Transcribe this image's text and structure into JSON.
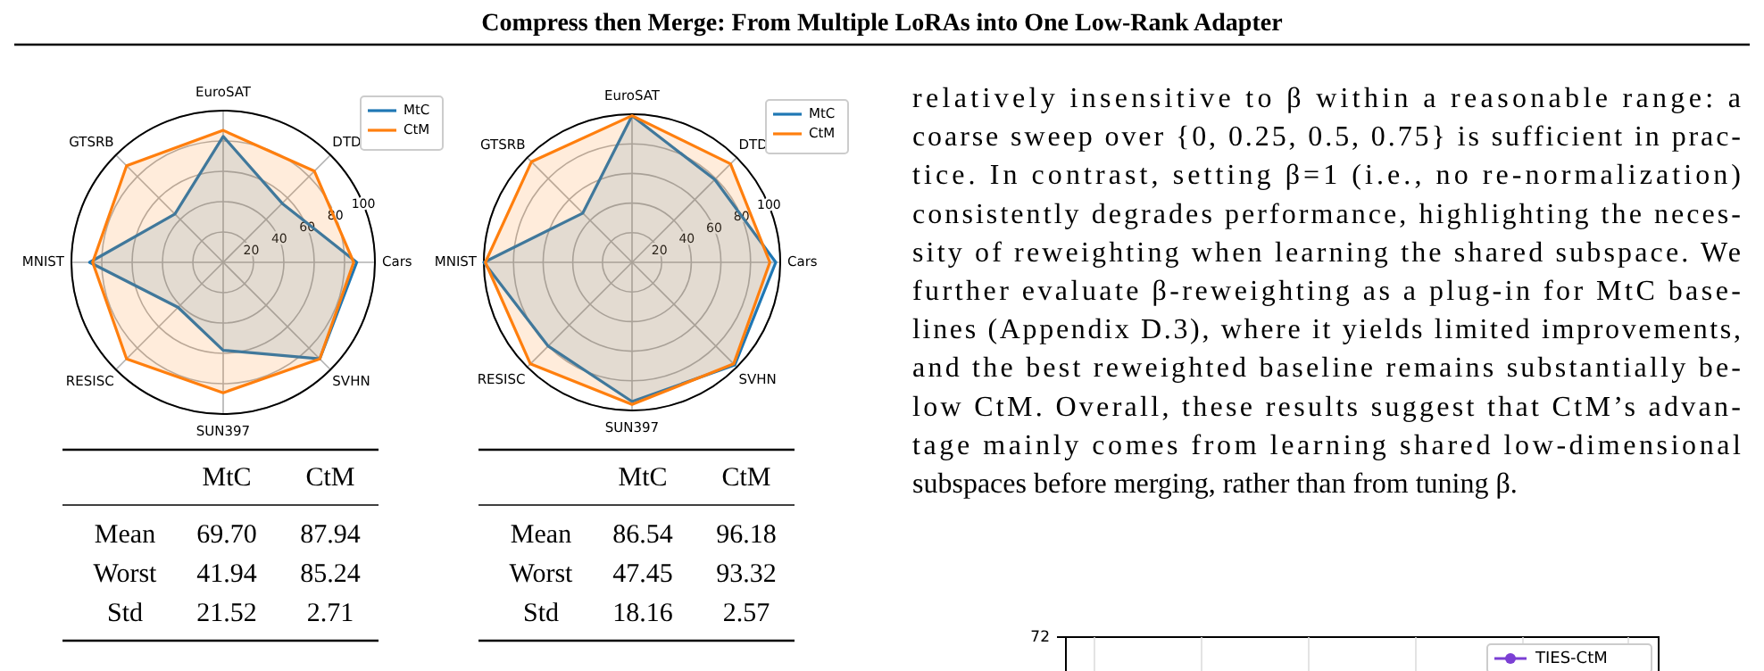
{
  "chart_data": [
    {
      "type": "radar",
      "categories": [
        "EuroSAT",
        "DTD",
        "Cars",
        "SVHN",
        "SUN397",
        "RESISC",
        "MNIST",
        "GTSRB"
      ],
      "ylim": [
        0,
        100
      ],
      "yticks": [
        20,
        40,
        60,
        80,
        100
      ],
      "grid": true,
      "legend": "top right",
      "series": [
        {
          "name": "MtC",
          "color": "#1f77b4",
          "values": [
            83,
            55,
            88,
            90,
            58,
            42,
            88,
            45
          ]
        },
        {
          "name": "CtM",
          "color": "#ff7f0e",
          "values": [
            87,
            85,
            86,
            90,
            86,
            90,
            86,
            90
          ]
        }
      ],
      "annotations": [
        "MtC",
        "CtM",
        "Mean",
        "69.70",
        "87.94",
        "Worst",
        "41.94",
        "85.24",
        "Std",
        "21.52",
        "2.71"
      ]
    },
    {
      "type": "radar",
      "categories": [
        "EuroSAT",
        "DTD",
        "Cars",
        "SVHN",
        "SUN397",
        "RESISC",
        "MNIST",
        "GTSRB"
      ],
      "ylim": [
        0,
        100
      ],
      "yticks": [
        20,
        40,
        60,
        80,
        100
      ],
      "grid": true,
      "legend": "top right",
      "series": [
        {
          "name": "MtC",
          "color": "#1f77b4",
          "values": [
            99,
            79,
            97,
            98,
            94,
            80,
            100,
            47
          ]
        },
        {
          "name": "CtM",
          "color": "#ff7f0e",
          "values": [
            99,
            94,
            93,
            97,
            96,
            97,
            99,
            96
          ]
        }
      ],
      "annotations": [
        "MtC",
        "CtM",
        "Mean",
        "86.54",
        "96.18",
        "Worst",
        "47.45",
        "93.32",
        "Std",
        "18.16",
        "2.57"
      ]
    },
    {
      "type": "other",
      "title": "Compress then Merge: From Multiple LoRAs into One Low-Rank Adapter",
      "annotations": [
        "relatively insensitive to β within a reasonable range: a",
        "coarse sweep over {0, 0.25, 0.5, 0.75} is sufficient in prac-",
        "tice. In contrast, setting β=1 (i.e., no re-normalization)",
        "consistently degrades performance, highlighting the neces-",
        "sity of reweighting when learning the shared subspace. We",
        "further evaluate β-reweighting as a plug-in for MtC base-",
        "lines (Appendix D.3), where it yields limited improvements,",
        "and the best reweighted baseline remains substantially be-",
        "low CtM. Overall, these results suggest that CtM’s advan-",
        "tage mainly comes from learning shared low-dimensional",
        "subspaces before merging, rather than from tuning β."
      ]
    },
    {
      "type": "other",
      "annotations": [
        "72",
        "TIES-CtM"
      ]
    }
  ]
}
